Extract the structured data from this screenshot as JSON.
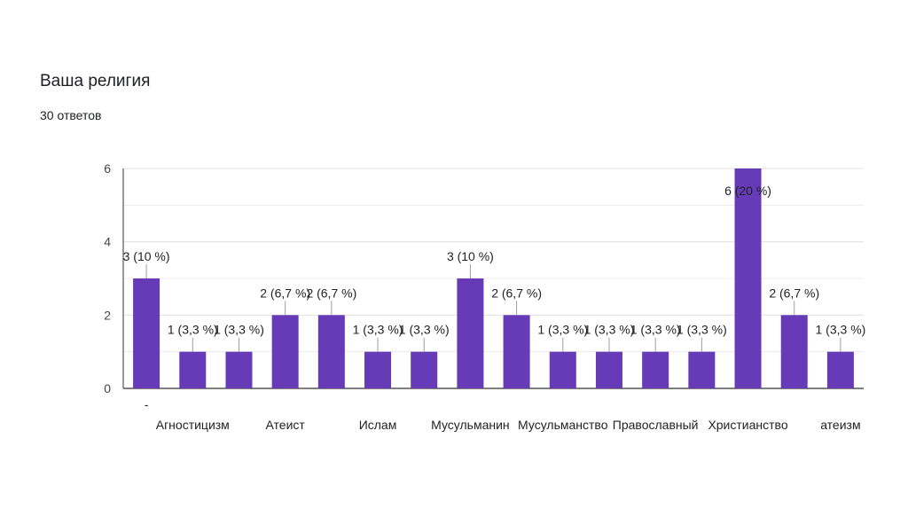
{
  "header": {
    "title": "Ваша религия",
    "responses": "30 ответов"
  },
  "chart_data": {
    "type": "bar",
    "title": "Ваша религия",
    "categories": [
      "-",
      "Агностицизм",
      "",
      "Атеист",
      "",
      "Ислам",
      "",
      "Мусульманин",
      "",
      "Мусульманство",
      "",
      "Православный",
      "",
      "Христианство",
      "",
      "атеизм"
    ],
    "values": [
      3,
      1,
      1,
      2,
      2,
      1,
      1,
      3,
      2,
      1,
      1,
      1,
      1,
      6,
      2,
      1
    ],
    "data_labels": [
      "3 (10 %)",
      "1 (3,3 %)",
      "1 (3,3 %)",
      "2 (6,7 %)",
      "2 (6,7 %)",
      "1 (3,3 %)",
      "1 (3,3 %)",
      "3 (10 %)",
      "2 (6,7 %)",
      "1 (3,3 %)",
      "1 (3,3 %)",
      "1 (3,3 %)",
      "1 (3,3 %)",
      "6 (20 %)",
      "2 (6,7 %)",
      "1 (3,3 %)"
    ],
    "yticks": [
      "0",
      "2",
      "4",
      "6"
    ],
    "ylim": [
      0,
      6
    ],
    "grid": true,
    "bar_color": "#673ab7",
    "grid_color": "#e0e0e0",
    "axis_color": "#333333"
  }
}
